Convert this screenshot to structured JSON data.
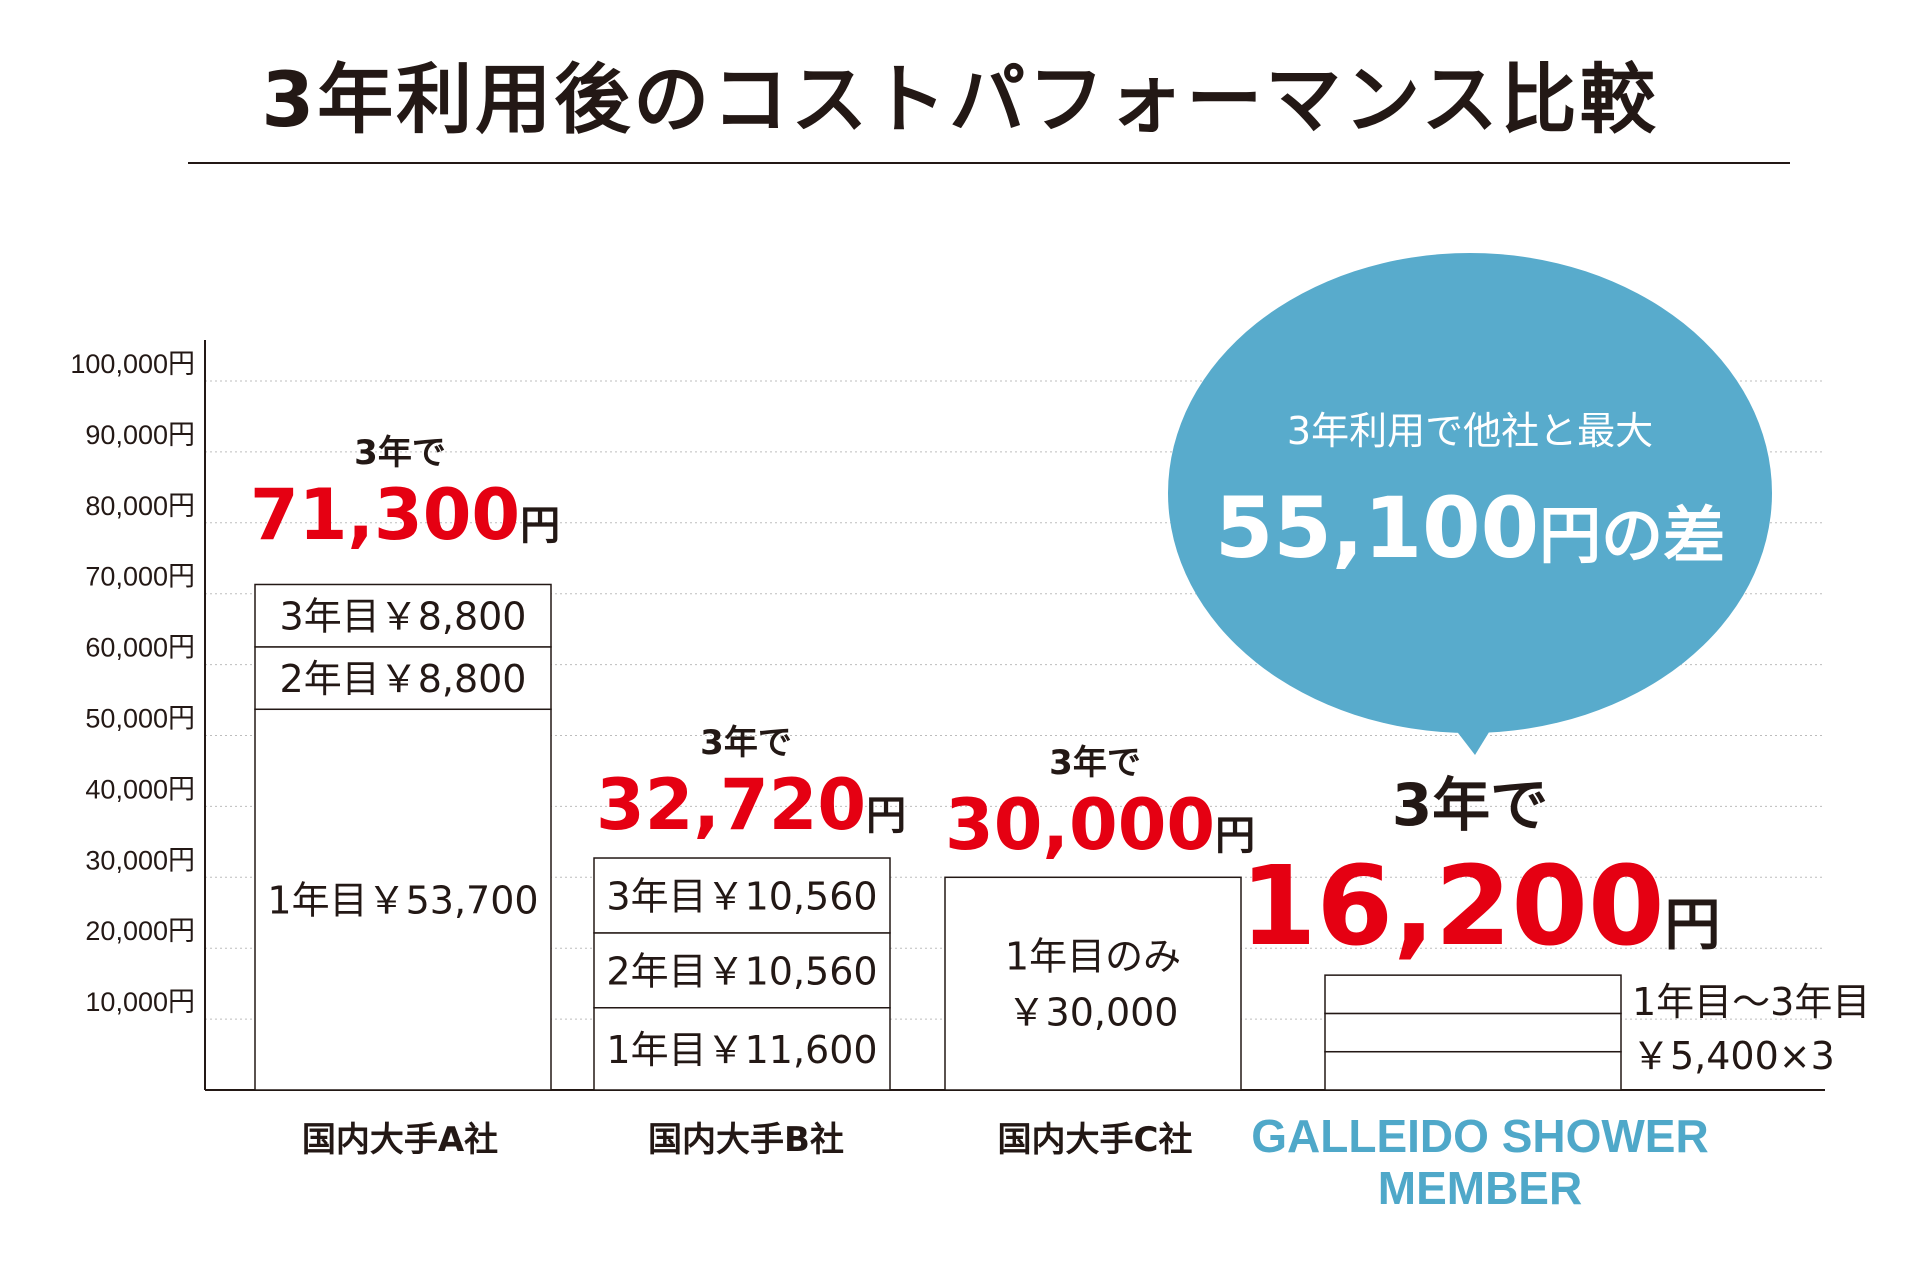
{
  "title": "3年利用後のコストパフォーマンス比較",
  "colors": {
    "accent_red": "#e50012",
    "brand_blue": "#4fa8c9",
    "bubble": "#58abcc",
    "text": "#231815"
  },
  "callout": {
    "line1": "3年利用で他社と最大",
    "amount": "55,100",
    "unit_suffix": "円の差"
  },
  "member_note": {
    "line1": "1年目〜3年目",
    "line2": "￥5,400×3"
  },
  "chart_data": {
    "type": "bar",
    "stacked": true,
    "ylim": [
      0,
      100000
    ],
    "grid": true,
    "yticks": [
      "10,000円",
      "20,000円",
      "30,000円",
      "40,000円",
      "50,000円",
      "60,000円",
      "70,000円",
      "80,000円",
      "90,000円",
      "100,000円"
    ],
    "ytick_values": [
      10000,
      20000,
      30000,
      40000,
      50000,
      60000,
      70000,
      80000,
      90000,
      100000
    ],
    "categories": [
      "国内大手A社",
      "国内大手B社",
      "国内大手C社",
      "GALLEIDO SHOWER MEMBER"
    ],
    "bars": [
      {
        "category": "国内大手A社",
        "total_prefix": "3年で",
        "total_value": "71,300",
        "total_unit": "円",
        "total": 71300,
        "segments": [
          {
            "label": "1年目￥53,700",
            "value": 53700
          },
          {
            "label": "2年目￥8,800",
            "value": 8800
          },
          {
            "label": "3年目￥8,800",
            "value": 8800
          }
        ]
      },
      {
        "category": "国内大手B社",
        "total_prefix": "3年で",
        "total_value": "32,720",
        "total_unit": "円",
        "total": 32720,
        "segments": [
          {
            "label": "1年目￥11,600",
            "value": 11600
          },
          {
            "label": "2年目￥10,560",
            "value": 10560
          },
          {
            "label": "3年目￥10,560",
            "value": 10560
          }
        ]
      },
      {
        "category": "国内大手C社",
        "total_prefix": "3年で",
        "total_value": "30,000",
        "total_unit": "円",
        "total": 30000,
        "segments": [
          {
            "label": "1年目のみ\n￥30,000",
            "value": 30000
          }
        ]
      },
      {
        "category": "GALLEIDO SHOWER MEMBER",
        "total_prefix": "3年で",
        "total_value": "16,200",
        "total_unit": "円",
        "total": 16200,
        "segments": [
          {
            "label": "",
            "value": 5400
          },
          {
            "label": "",
            "value": 5400
          },
          {
            "label": "",
            "value": 5400
          }
        ]
      }
    ]
  }
}
